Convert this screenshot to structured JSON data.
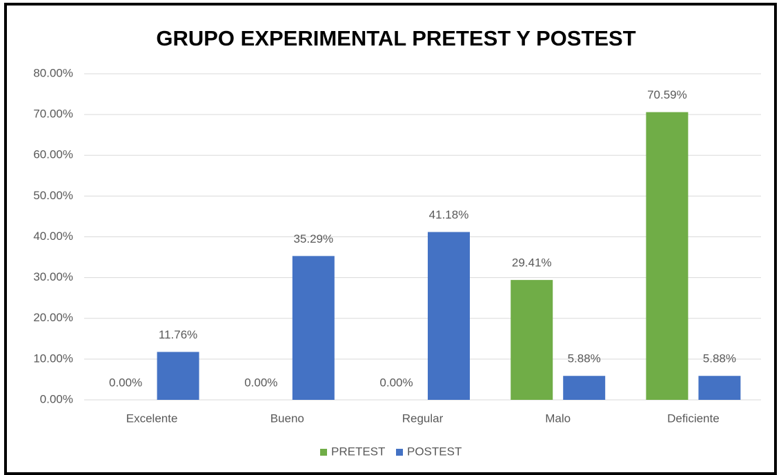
{
  "chart_data": {
    "type": "bar",
    "title": "GRUPO EXPERIMENTAL PRETEST Y POSTEST",
    "categories": [
      "Excelente",
      "Bueno",
      "Regular",
      "Malo",
      "Deficiente"
    ],
    "series": [
      {
        "name": "PRETEST",
        "color": "#70ad47",
        "values": [
          0,
          0,
          0,
          29.41,
          70.59
        ],
        "value_labels": [
          "0.00%",
          "0.00%",
          "0.00%",
          "29.41%",
          "70.59%"
        ]
      },
      {
        "name": "POSTEST",
        "color": "#4472c4",
        "values": [
          11.76,
          35.29,
          41.18,
          5.88,
          5.88
        ],
        "value_labels": [
          "11.76%",
          "35.29%",
          "41.18%",
          "5.88%",
          "5.88%"
        ]
      }
    ],
    "ylim": [
      0,
      80
    ],
    "yticks": [
      {
        "value": 0,
        "label": "0.00%"
      },
      {
        "value": 10,
        "label": "10.00%"
      },
      {
        "value": 20,
        "label": "20.00%"
      },
      {
        "value": 30,
        "label": "30.00%"
      },
      {
        "value": 40,
        "label": "40.00%"
      },
      {
        "value": 50,
        "label": "50.00%"
      },
      {
        "value": 60,
        "label": "60.00%"
      },
      {
        "value": 70,
        "label": "70.00%"
      },
      {
        "value": 80,
        "label": "80.00%"
      }
    ],
    "grid": true,
    "legend": "bottom"
  }
}
